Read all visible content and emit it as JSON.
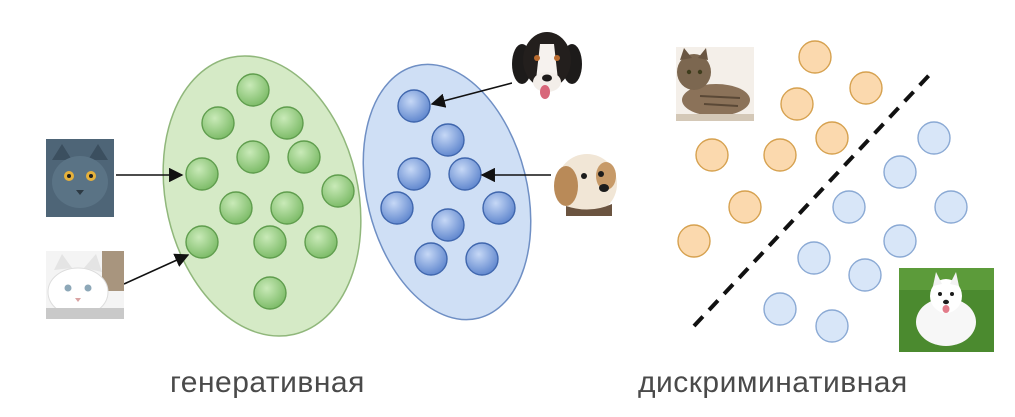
{
  "captions": {
    "generative": "генеративная",
    "discriminative": "дискриминативная"
  },
  "colors": {
    "cat_cluster_fill": "#cfe6bf",
    "cat_cluster_stroke": "#8fb878",
    "cat_dot_fill": "#96cf7f",
    "cat_dot_stroke": "#5f9d4d",
    "dog_cluster_fill": "#c8daf3",
    "dog_cluster_stroke": "#6f8fc4",
    "dog_dot_fill": "#7ea2e2",
    "dog_dot_stroke": "#3f66ad",
    "cat_class_fill": "#fbd9ae",
    "cat_class_stroke": "#d6a14f",
    "dog_class_fill": "#d8e6f8",
    "dog_class_stroke": "#8aa9d4",
    "separator": "#111111",
    "arrow": "#111111"
  },
  "icons": {
    "gray_cat": "gray-cat-photo",
    "white_cat": "white-cat-photo",
    "bernese_dog": "bernese-dog-photo",
    "small_dog": "small-dog-photo",
    "tabby_cat": "tabby-cat-photo",
    "white_dog": "white-dog-photo"
  }
}
